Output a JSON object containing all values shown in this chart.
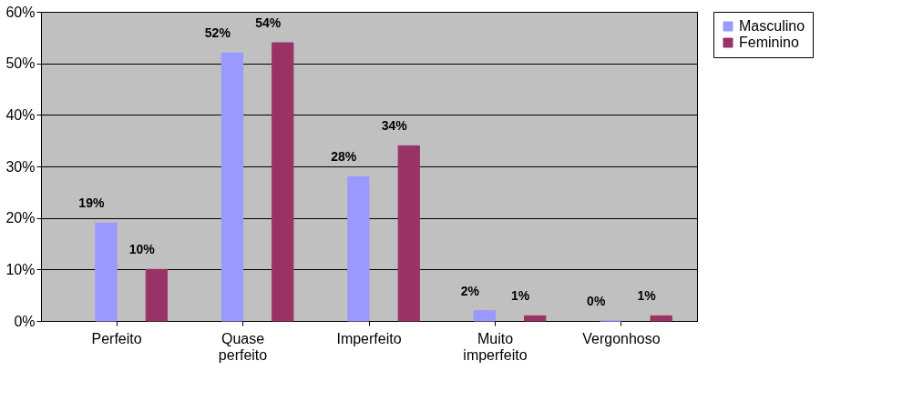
{
  "chart_data": {
    "type": "bar",
    "categories": [
      "Perfeito",
      "Quase perfeito",
      "Imperfeito",
      "Muito imperfeito",
      "Vergonhoso"
    ],
    "series": [
      {
        "name": "Masculino",
        "color": "#9999ff",
        "values": [
          19,
          52,
          28,
          2,
          0
        ],
        "value_labels": [
          "19%",
          "52%",
          "28%",
          "2%",
          "0%"
        ]
      },
      {
        "name": "Feminino",
        "color": "#993366",
        "values": [
          10,
          54,
          34,
          1,
          1
        ],
        "value_labels": [
          "10%",
          "54%",
          "34%",
          "1%",
          "1%"
        ]
      }
    ],
    "ylim": [
      0,
      60
    ],
    "yticks": [
      {
        "value": 0,
        "label": "0%"
      },
      {
        "value": 10,
        "label": "10%"
      },
      {
        "value": 20,
        "label": "20%"
      },
      {
        "value": 30,
        "label": "30%"
      },
      {
        "value": 40,
        "label": "40%"
      },
      {
        "value": 50,
        "label": "50%"
      },
      {
        "value": 60,
        "label": "60%"
      }
    ],
    "grid": "y",
    "legend": "right"
  }
}
